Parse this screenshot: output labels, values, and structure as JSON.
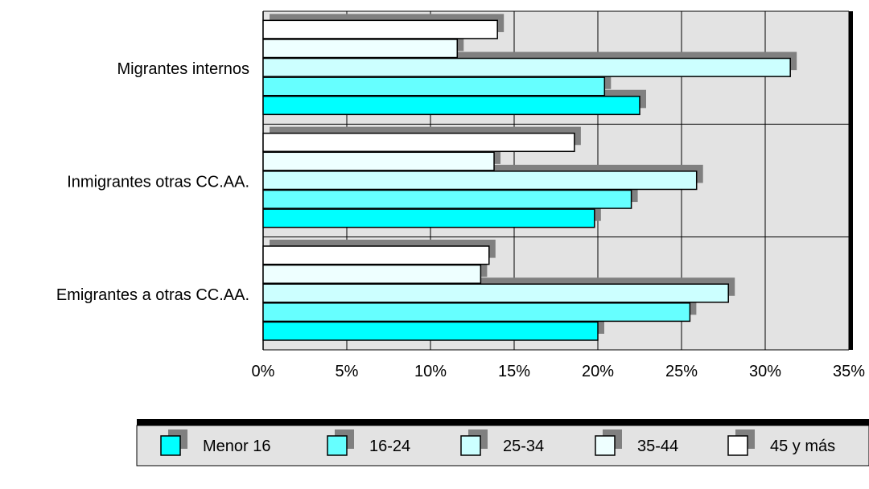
{
  "chart_data": {
    "type": "bar",
    "orientation": "horizontal",
    "categories": [
      "Emigrantes a otras CC.AA.",
      "Inmigrantes otras CC.AA.",
      "Migrantes internos"
    ],
    "series": [
      {
        "name": "Menor 16",
        "color": "#00ffff",
        "values": [
          20.0,
          19.8,
          22.5
        ]
      },
      {
        "name": "16-24",
        "color": "#66ffff",
        "values": [
          25.5,
          22.0,
          20.4
        ]
      },
      {
        "name": "25-34",
        "color": "#ccffff",
        "values": [
          27.8,
          25.9,
          31.5
        ]
      },
      {
        "name": "35-44",
        "color": "#eeffff",
        "values": [
          13.0,
          13.8,
          11.6
        ]
      },
      {
        "name": "45 y más",
        "color": "#ffffff",
        "values": [
          13.5,
          18.6,
          14.0
        ]
      }
    ],
    "x_ticks": [
      "0%",
      "5%",
      "10%",
      "15%",
      "20%",
      "25%",
      "30%",
      "35%"
    ],
    "xlim": [
      0,
      35
    ],
    "grid": true,
    "legend_position": "bottom",
    "plot_background": "#e3e3e3",
    "shadow_color": "#808080"
  }
}
